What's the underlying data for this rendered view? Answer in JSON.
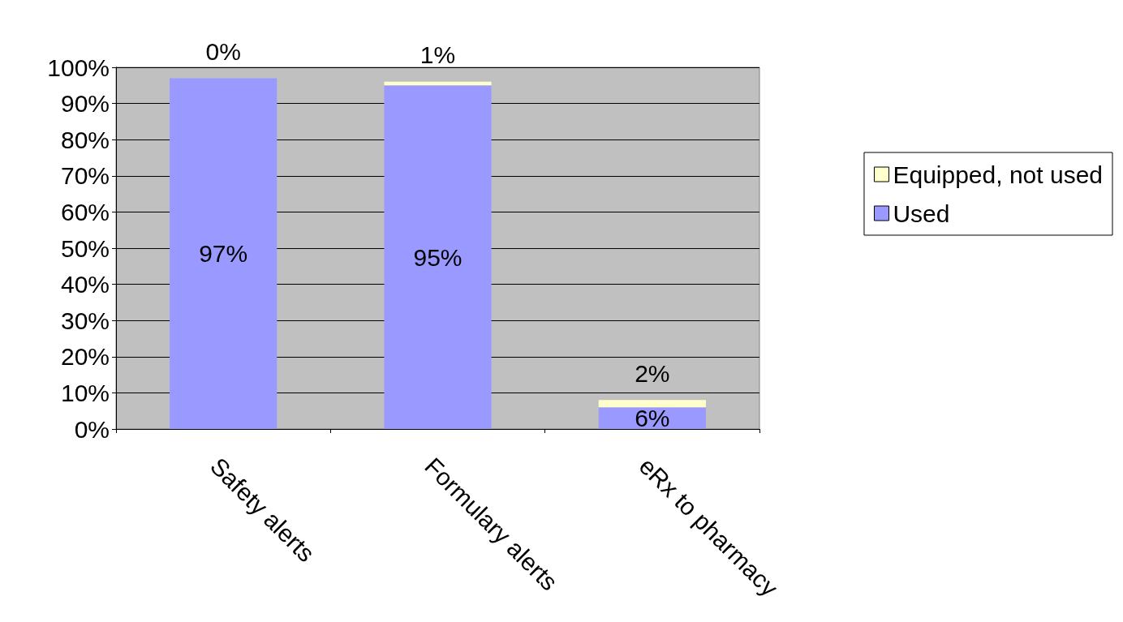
{
  "chart_data": {
    "type": "bar",
    "stacked": true,
    "categories": [
      "Safety alerts",
      "Formulary alerts",
      "eRx to pharmacy"
    ],
    "series": [
      {
        "name": "Used",
        "color": "#9999ff",
        "values": [
          97,
          95,
          6
        ],
        "value_labels": [
          "97%",
          "95%",
          "6%"
        ]
      },
      {
        "name": "Equipped, not used",
        "color": "#ffffcc",
        "values": [
          0,
          1,
          2
        ],
        "value_labels": [
          "0%",
          "1%",
          "2%"
        ]
      }
    ],
    "ylim": [
      0,
      100
    ],
    "yticks": [
      {
        "value": 0,
        "label": "0%"
      },
      {
        "value": 10,
        "label": "10%"
      },
      {
        "value": 20,
        "label": "20%"
      },
      {
        "value": 30,
        "label": "30%"
      },
      {
        "value": 40,
        "label": "40%"
      },
      {
        "value": 50,
        "label": "50%"
      },
      {
        "value": 60,
        "label": "60%"
      },
      {
        "value": 70,
        "label": "70%"
      },
      {
        "value": 80,
        "label": "80%"
      },
      {
        "value": 90,
        "label": "90%"
      },
      {
        "value": 100,
        "label": "100%"
      }
    ],
    "grid": "y",
    "legend": "right"
  }
}
